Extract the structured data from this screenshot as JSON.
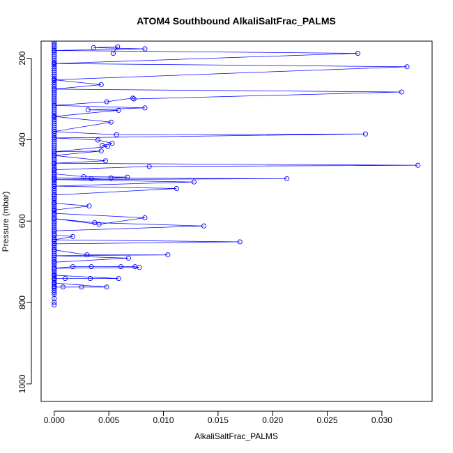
{
  "chart_data": {
    "type": "line",
    "title": "ATOM4 Southbound AlkaliSaltFrac_PALMS",
    "xlabel": "AlkaliSaltFrac_PALMS",
    "ylabel": "Pressure (mbar)",
    "xlim": [
      -0.0012,
      0.0346
    ],
    "ylim": [
      1043,
      158
    ],
    "y_reversed": true,
    "x_ticks": [
      "0.000",
      "0.005",
      "0.010",
      "0.015",
      "0.020",
      "0.025",
      "0.030"
    ],
    "y_ticks": [
      "200",
      "400",
      "600",
      "800",
      "1000"
    ],
    "grid": false,
    "line_color": "#0000ff",
    "marker": "open-circle",
    "series": [
      {
        "points": [
          [
            0.0,
            806
          ],
          [
            0.0,
            800
          ],
          [
            0.0,
            790
          ],
          [
            0.0,
            780
          ],
          [
            0.0,
            775
          ],
          [
            0.0,
            770
          ],
          [
            0.0,
            765
          ],
          [
            0.0,
            760
          ],
          [
            0.0,
            755
          ],
          [
            0.0,
            750
          ],
          [
            0.0,
            745
          ],
          [
            0.0,
            740
          ],
          [
            0.0,
            735
          ],
          [
            0.0,
            730
          ],
          [
            0.0,
            725
          ],
          [
            0.0,
            720
          ],
          [
            0.0,
            715
          ],
          [
            0.0,
            710
          ],
          [
            0.0,
            705
          ],
          [
            0.0,
            700
          ],
          [
            0.0,
            695
          ],
          [
            0.0,
            690
          ],
          [
            0.0,
            685
          ],
          [
            0.0,
            680
          ],
          [
            0.0,
            675
          ],
          [
            0.0,
            670
          ],
          [
            0.0,
            665
          ],
          [
            0.0,
            660
          ],
          [
            0.0,
            655
          ],
          [
            0.0,
            650
          ],
          [
            0.0,
            645
          ],
          [
            0.0,
            640
          ],
          [
            0.0,
            635
          ],
          [
            0.0,
            630
          ],
          [
            0.0,
            625
          ],
          [
            0.0,
            620
          ],
          [
            0.0,
            615
          ],
          [
            0.0,
            610
          ],
          [
            0.0,
            605
          ],
          [
            0.0,
            600
          ],
          [
            0.0,
            595
          ],
          [
            0.0,
            590
          ],
          [
            0.0,
            585
          ],
          [
            0.0,
            580
          ],
          [
            0.0,
            575
          ],
          [
            0.0,
            570
          ],
          [
            0.0,
            565
          ],
          [
            0.0,
            560
          ],
          [
            0.0,
            555
          ],
          [
            0.0,
            550
          ],
          [
            0.0,
            545
          ],
          [
            0.0,
            540
          ],
          [
            0.0,
            535
          ],
          [
            0.0,
            530
          ],
          [
            0.0,
            525
          ],
          [
            0.0,
            520
          ],
          [
            0.0,
            515
          ],
          [
            0.0,
            510
          ],
          [
            0.0,
            505
          ],
          [
            0.0,
            500
          ],
          [
            0.0,
            495
          ],
          [
            0.0,
            490
          ],
          [
            0.0,
            485
          ],
          [
            0.0,
            480
          ],
          [
            0.0,
            475
          ],
          [
            0.0,
            470
          ],
          [
            0.0,
            465
          ],
          [
            0.0,
            460
          ],
          [
            0.0,
            455
          ],
          [
            0.0,
            450
          ],
          [
            0.0,
            445
          ],
          [
            0.0,
            440
          ],
          [
            0.0,
            435
          ],
          [
            0.0,
            430
          ],
          [
            0.0,
            425
          ],
          [
            0.0,
            420
          ],
          [
            0.0,
            415
          ],
          [
            0.0,
            410
          ],
          [
            0.0,
            405
          ],
          [
            0.0,
            400
          ],
          [
            0.0,
            395
          ],
          [
            0.0,
            390
          ],
          [
            0.0,
            385
          ],
          [
            0.0,
            380
          ],
          [
            0.0,
            375
          ],
          [
            0.0,
            370
          ],
          [
            0.0,
            365
          ],
          [
            0.0,
            360
          ],
          [
            0.0,
            355
          ],
          [
            0.0,
            350
          ],
          [
            0.0,
            345
          ],
          [
            0.0,
            340
          ],
          [
            0.0,
            335
          ],
          [
            0.0,
            330
          ],
          [
            0.0,
            325
          ],
          [
            0.0,
            320
          ],
          [
            0.0,
            315
          ],
          [
            0.0,
            310
          ],
          [
            0.0,
            305
          ],
          [
            0.0,
            300
          ],
          [
            0.0,
            295
          ],
          [
            0.0,
            290
          ],
          [
            0.0,
            285
          ],
          [
            0.0,
            280
          ],
          [
            0.0,
            275
          ],
          [
            0.0,
            270
          ],
          [
            0.0,
            265
          ],
          [
            0.0,
            260
          ],
          [
            0.0,
            255
          ],
          [
            0.0,
            250
          ],
          [
            0.0,
            245
          ],
          [
            0.0,
            240
          ],
          [
            0.0,
            235
          ],
          [
            0.0,
            230
          ],
          [
            0.0,
            225
          ],
          [
            0.0,
            220
          ],
          [
            0.0,
            215
          ],
          [
            0.0,
            210
          ],
          [
            0.0,
            205
          ],
          [
            0.0,
            200
          ],
          [
            0.0,
            195
          ],
          [
            0.0,
            190
          ],
          [
            0.0,
            185
          ],
          [
            0.0,
            180
          ],
          [
            0.0,
            175
          ],
          [
            0.0,
            170
          ],
          [
            0.0,
            165
          ],
          [
            0.0,
            160
          ]
        ]
      },
      {
        "points": [
          [
            0.0,
            762
          ],
          [
            0.0008,
            762
          ],
          [
            0.0025,
            762
          ],
          [
            0.0048,
            762
          ],
          [
            0.0,
            752
          ],
          [
            0.0,
            741
          ],
          [
            0.001,
            741
          ],
          [
            0.0033,
            741
          ],
          [
            0.0059,
            741
          ],
          [
            0.0,
            733
          ],
          [
            0.0,
            716
          ],
          [
            0.0017,
            712
          ],
          [
            0.0034,
            712
          ],
          [
            0.0061,
            712
          ],
          [
            0.0074,
            712
          ],
          [
            0.0078,
            714
          ],
          [
            0.0,
            716
          ],
          [
            0.0,
            701
          ],
          [
            0.0068,
            691
          ],
          [
            0.0,
            685
          ],
          [
            0.0104,
            683
          ],
          [
            0.003,
            683
          ],
          [
            0.0,
            671
          ],
          [
            0.0,
            656
          ],
          [
            0.017,
            651
          ],
          [
            0.0,
            646
          ],
          [
            0.0017,
            638
          ],
          [
            0.0,
            634
          ],
          [
            0.0,
            624
          ],
          [
            0.0137,
            612
          ],
          [
            0.0037,
            604
          ],
          [
            0.0,
            594
          ],
          [
            0.0041,
            608
          ],
          [
            0.0083,
            592
          ],
          [
            0.0,
            581
          ],
          [
            0.0,
            573
          ],
          [
            0.0032,
            563
          ],
          [
            0.0,
            556
          ],
          [
            0.0,
            544
          ],
          [
            0.0,
            536
          ],
          [
            0.0112,
            520
          ],
          [
            0.0,
            514
          ],
          [
            0.0128,
            504
          ],
          [
            0.0,
            498
          ],
          [
            0.0213,
            496
          ],
          [
            0.0,
            494
          ],
          [
            0.0034,
            496
          ],
          [
            0.0052,
            494
          ],
          [
            0.0067,
            492
          ],
          [
            0.0027,
            491
          ],
          [
            0.0,
            484
          ],
          [
            0.0,
            474
          ],
          [
            0.0087,
            466
          ],
          [
            0.0333,
            463
          ],
          [
            0.0,
            458
          ],
          [
            0.0047,
            452
          ],
          [
            0.0,
            439
          ],
          [
            0.0043,
            428
          ],
          [
            0.0,
            430
          ],
          [
            0.0049,
            417
          ],
          [
            0.0044,
            414
          ],
          [
            0.0053,
            409
          ],
          [
            0.004,
            401
          ],
          [
            0.0,
            396
          ],
          [
            0.0285,
            386
          ],
          [
            0.0057,
            388
          ],
          [
            0.0,
            380
          ],
          [
            0.0052,
            357
          ],
          [
            0.0,
            343
          ],
          [
            0.0059,
            328
          ],
          [
            0.0031,
            327
          ],
          [
            0.0083,
            322
          ],
          [
            0.0,
            316
          ],
          [
            0.0048,
            307
          ],
          [
            0.0072,
            298
          ],
          [
            0.0073,
            300
          ],
          [
            0.0318,
            283
          ],
          [
            0.0,
            276
          ],
          [
            0.0043,
            265
          ],
          [
            0.0,
            253
          ],
          [
            0.0323,
            221
          ],
          [
            0.0,
            213
          ],
          [
            0.0278,
            188
          ],
          [
            0.0,
            181
          ],
          [
            0.0083,
            177
          ],
          [
            0.0036,
            174
          ],
          [
            0.0058,
            172
          ],
          [
            0.0054,
            188
          ]
        ]
      }
    ]
  }
}
